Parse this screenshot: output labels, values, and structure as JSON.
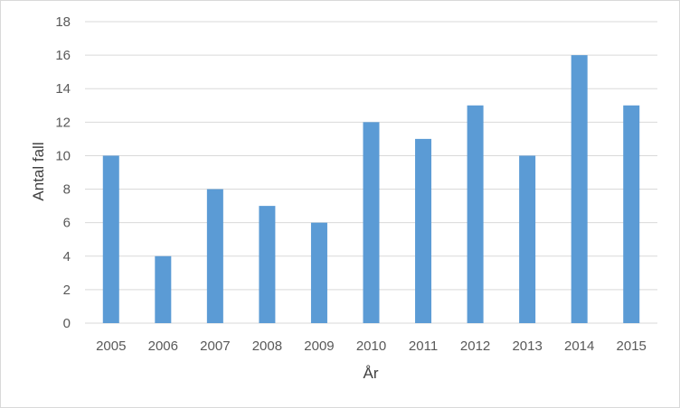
{
  "chart_data": {
    "type": "bar",
    "title": "",
    "xlabel": "År",
    "ylabel": "Antal fall",
    "categories": [
      "2005",
      "2006",
      "2007",
      "2008",
      "2009",
      "2010",
      "2011",
      "2012",
      "2013",
      "2014",
      "2015"
    ],
    "values": [
      10,
      4,
      8,
      7,
      6,
      12,
      11,
      13,
      10,
      16,
      13
    ],
    "ylim": [
      0,
      18
    ],
    "yticks": [
      "0",
      "2",
      "4",
      "6",
      "8",
      "10",
      "12",
      "14",
      "16",
      "18"
    ],
    "grid": true,
    "legend": "none",
    "bar_color": "#5b9bd5",
    "grid_color": "#d9d9d9"
  }
}
